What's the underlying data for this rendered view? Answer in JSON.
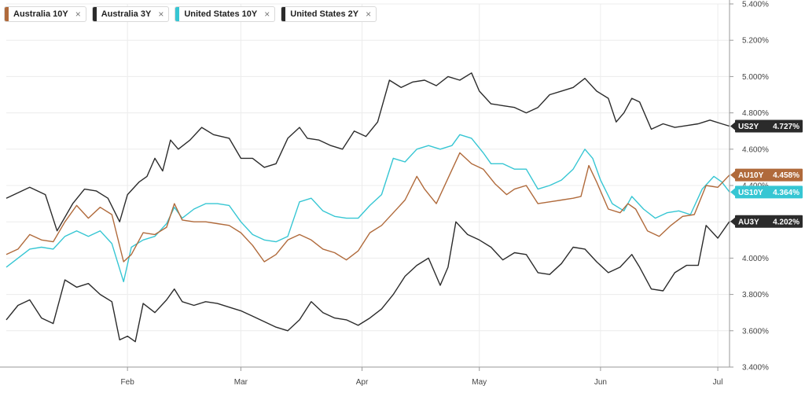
{
  "legend": [
    {
      "name": "Australia 10Y",
      "color": "#b06a3b"
    },
    {
      "name": "Australia 3Y",
      "color": "#2b2b2b"
    },
    {
      "name": "United States 10Y",
      "color": "#36c6d3"
    },
    {
      "name": "United States 2Y",
      "color": "#2b2b2b"
    }
  ],
  "chart_data": {
    "type": "line",
    "title": "",
    "xlabel": "",
    "ylabel": "",
    "ylim": [
      3.4,
      5.4
    ],
    "y_ticks": [
      "3.400%",
      "3.600%",
      "3.800%",
      "4.000%",
      "4.200%",
      "4.400%",
      "4.600%",
      "4.800%",
      "5.000%",
      "5.200%",
      "5.400%"
    ],
    "y_tick_values": [
      3.4,
      3.6,
      3.8,
      4.0,
      4.2,
      4.4,
      4.6,
      4.8,
      5.0,
      5.2,
      5.4
    ],
    "x_range": [
      0,
      185
    ],
    "x_ticks": [
      {
        "label": "Feb",
        "t": 31
      },
      {
        "label": "Mar",
        "t": 60
      },
      {
        "label": "Apr",
        "t": 91
      },
      {
        "label": "May",
        "t": 121
      },
      {
        "label": "Jun",
        "t": 152
      },
      {
        "label": "Jul",
        "t": 182
      }
    ],
    "grid": true,
    "legend_position": "top-left",
    "series": [
      {
        "name": "United States 2Y",
        "badge": "US2Y",
        "value_label": "4.727%",
        "color": "#2b2b2b",
        "points": [
          [
            0,
            4.33
          ],
          [
            6,
            4.39
          ],
          [
            10,
            4.35
          ],
          [
            13,
            4.15
          ],
          [
            17,
            4.3
          ],
          [
            20,
            4.38
          ],
          [
            23,
            4.37
          ],
          [
            26,
            4.33
          ],
          [
            29,
            4.2
          ],
          [
            31,
            4.35
          ],
          [
            34,
            4.42
          ],
          [
            36,
            4.45
          ],
          [
            38,
            4.55
          ],
          [
            40,
            4.48
          ],
          [
            42,
            4.65
          ],
          [
            44,
            4.6
          ],
          [
            47,
            4.65
          ],
          [
            50,
            4.72
          ],
          [
            53,
            4.68
          ],
          [
            57,
            4.66
          ],
          [
            60,
            4.55
          ],
          [
            63,
            4.55
          ],
          [
            66,
            4.5
          ],
          [
            69,
            4.52
          ],
          [
            72,
            4.66
          ],
          [
            75,
            4.72
          ],
          [
            77,
            4.66
          ],
          [
            80,
            4.65
          ],
          [
            83,
            4.62
          ],
          [
            86,
            4.6
          ],
          [
            89,
            4.7
          ],
          [
            92,
            4.67
          ],
          [
            95,
            4.75
          ],
          [
            98,
            4.98
          ],
          [
            101,
            4.94
          ],
          [
            104,
            4.97
          ],
          [
            107,
            4.98
          ],
          [
            110,
            4.95
          ],
          [
            113,
            5.0
          ],
          [
            116,
            4.98
          ],
          [
            119,
            5.02
          ],
          [
            121,
            4.92
          ],
          [
            124,
            4.85
          ],
          [
            127,
            4.84
          ],
          [
            130,
            4.83
          ],
          [
            133,
            4.8
          ],
          [
            136,
            4.83
          ],
          [
            139,
            4.9
          ],
          [
            142,
            4.92
          ],
          [
            145,
            4.94
          ],
          [
            148,
            4.99
          ],
          [
            151,
            4.92
          ],
          [
            154,
            4.88
          ],
          [
            156,
            4.75
          ],
          [
            158,
            4.8
          ],
          [
            160,
            4.88
          ],
          [
            162,
            4.86
          ],
          [
            165,
            4.71
          ],
          [
            168,
            4.74
          ],
          [
            171,
            4.72
          ],
          [
            174,
            4.73
          ],
          [
            177,
            4.74
          ],
          [
            180,
            4.76
          ],
          [
            183,
            4.74
          ],
          [
            185,
            4.727
          ]
        ]
      },
      {
        "name": "United States 10Y",
        "badge": "US10Y",
        "value_label": "4.364%",
        "color": "#36c6d3",
        "points": [
          [
            0,
            3.95
          ],
          [
            3,
            4.0
          ],
          [
            6,
            4.05
          ],
          [
            9,
            4.06
          ],
          [
            12,
            4.05
          ],
          [
            15,
            4.12
          ],
          [
            18,
            4.15
          ],
          [
            21,
            4.12
          ],
          [
            24,
            4.15
          ],
          [
            27,
            4.08
          ],
          [
            30,
            3.87
          ],
          [
            32,
            4.06
          ],
          [
            35,
            4.1
          ],
          [
            38,
            4.12
          ],
          [
            41,
            4.19
          ],
          [
            43,
            4.28
          ],
          [
            45,
            4.22
          ],
          [
            48,
            4.27
          ],
          [
            51,
            4.3
          ],
          [
            54,
            4.3
          ],
          [
            57,
            4.29
          ],
          [
            60,
            4.2
          ],
          [
            63,
            4.13
          ],
          [
            66,
            4.1
          ],
          [
            69,
            4.09
          ],
          [
            72,
            4.12
          ],
          [
            75,
            4.31
          ],
          [
            78,
            4.33
          ],
          [
            81,
            4.26
          ],
          [
            84,
            4.23
          ],
          [
            87,
            4.22
          ],
          [
            90,
            4.22
          ],
          [
            93,
            4.29
          ],
          [
            96,
            4.35
          ],
          [
            99,
            4.55
          ],
          [
            102,
            4.53
          ],
          [
            105,
            4.6
          ],
          [
            108,
            4.62
          ],
          [
            111,
            4.6
          ],
          [
            114,
            4.62
          ],
          [
            116,
            4.68
          ],
          [
            119,
            4.66
          ],
          [
            122,
            4.58
          ],
          [
            124,
            4.52
          ],
          [
            127,
            4.52
          ],
          [
            130,
            4.49
          ],
          [
            133,
            4.49
          ],
          [
            136,
            4.38
          ],
          [
            139,
            4.4
          ],
          [
            142,
            4.43
          ],
          [
            145,
            4.49
          ],
          [
            148,
            4.6
          ],
          [
            150,
            4.55
          ],
          [
            152,
            4.43
          ],
          [
            155,
            4.3
          ],
          [
            158,
            4.26
          ],
          [
            160,
            4.34
          ],
          [
            163,
            4.27
          ],
          [
            166,
            4.22
          ],
          [
            169,
            4.25
          ],
          [
            172,
            4.26
          ],
          [
            175,
            4.24
          ],
          [
            178,
            4.38
          ],
          [
            181,
            4.45
          ],
          [
            183,
            4.42
          ],
          [
            185,
            4.364
          ]
        ]
      },
      {
        "name": "Australia 10Y",
        "badge": "AU10Y",
        "value_label": "4.458%",
        "color": "#b06a3b",
        "points": [
          [
            0,
            4.02
          ],
          [
            3,
            4.05
          ],
          [
            6,
            4.13
          ],
          [
            9,
            4.1
          ],
          [
            12,
            4.09
          ],
          [
            15,
            4.2
          ],
          [
            18,
            4.29
          ],
          [
            21,
            4.22
          ],
          [
            24,
            4.28
          ],
          [
            27,
            4.24
          ],
          [
            30,
            3.98
          ],
          [
            32,
            4.02
          ],
          [
            35,
            4.14
          ],
          [
            38,
            4.13
          ],
          [
            41,
            4.17
          ],
          [
            43,
            4.3
          ],
          [
            45,
            4.21
          ],
          [
            48,
            4.2
          ],
          [
            51,
            4.2
          ],
          [
            54,
            4.19
          ],
          [
            57,
            4.18
          ],
          [
            60,
            4.14
          ],
          [
            63,
            4.07
          ],
          [
            66,
            3.98
          ],
          [
            69,
            4.02
          ],
          [
            72,
            4.1
          ],
          [
            75,
            4.13
          ],
          [
            78,
            4.1
          ],
          [
            81,
            4.05
          ],
          [
            84,
            4.03
          ],
          [
            87,
            3.99
          ],
          [
            90,
            4.04
          ],
          [
            93,
            4.14
          ],
          [
            96,
            4.18
          ],
          [
            99,
            4.25
          ],
          [
            102,
            4.32
          ],
          [
            105,
            4.45
          ],
          [
            107,
            4.38
          ],
          [
            110,
            4.3
          ],
          [
            113,
            4.44
          ],
          [
            116,
            4.58
          ],
          [
            119,
            4.52
          ],
          [
            122,
            4.49
          ],
          [
            125,
            4.41
          ],
          [
            128,
            4.35
          ],
          [
            130,
            4.38
          ],
          [
            133,
            4.4
          ],
          [
            136,
            4.3
          ],
          [
            139,
            4.31
          ],
          [
            142,
            4.32
          ],
          [
            145,
            4.33
          ],
          [
            147,
            4.34
          ],
          [
            149,
            4.51
          ],
          [
            151,
            4.42
          ],
          [
            154,
            4.27
          ],
          [
            157,
            4.25
          ],
          [
            159,
            4.3
          ],
          [
            161,
            4.27
          ],
          [
            164,
            4.15
          ],
          [
            167,
            4.12
          ],
          [
            170,
            4.18
          ],
          [
            173,
            4.23
          ],
          [
            176,
            4.24
          ],
          [
            179,
            4.4
          ],
          [
            182,
            4.39
          ],
          [
            185,
            4.458
          ]
        ]
      },
      {
        "name": "Australia 3Y",
        "badge": "AU3Y",
        "value_label": "4.202%",
        "color": "#2b2b2b",
        "points": [
          [
            0,
            3.66
          ],
          [
            3,
            3.74
          ],
          [
            6,
            3.77
          ],
          [
            9,
            3.67
          ],
          [
            12,
            3.64
          ],
          [
            15,
            3.88
          ],
          [
            18,
            3.84
          ],
          [
            21,
            3.86
          ],
          [
            24,
            3.8
          ],
          [
            27,
            3.76
          ],
          [
            29,
            3.55
          ],
          [
            31,
            3.57
          ],
          [
            33,
            3.54
          ],
          [
            35,
            3.75
          ],
          [
            38,
            3.7
          ],
          [
            41,
            3.77
          ],
          [
            43,
            3.83
          ],
          [
            45,
            3.76
          ],
          [
            48,
            3.74
          ],
          [
            51,
            3.76
          ],
          [
            54,
            3.75
          ],
          [
            57,
            3.73
          ],
          [
            60,
            3.71
          ],
          [
            63,
            3.68
          ],
          [
            66,
            3.65
          ],
          [
            69,
            3.62
          ],
          [
            72,
            3.6
          ],
          [
            75,
            3.66
          ],
          [
            78,
            3.76
          ],
          [
            81,
            3.7
          ],
          [
            84,
            3.67
          ],
          [
            87,
            3.66
          ],
          [
            90,
            3.63
          ],
          [
            93,
            3.67
          ],
          [
            96,
            3.72
          ],
          [
            99,
            3.8
          ],
          [
            102,
            3.9
          ],
          [
            105,
            3.96
          ],
          [
            108,
            4.0
          ],
          [
            111,
            3.85
          ],
          [
            113,
            3.95
          ],
          [
            115,
            4.2
          ],
          [
            118,
            4.13
          ],
          [
            121,
            4.1
          ],
          [
            124,
            4.06
          ],
          [
            127,
            3.99
          ],
          [
            130,
            4.03
          ],
          [
            133,
            4.02
          ],
          [
            136,
            3.92
          ],
          [
            139,
            3.91
          ],
          [
            142,
            3.97
          ],
          [
            145,
            4.06
          ],
          [
            148,
            4.05
          ],
          [
            151,
            3.98
          ],
          [
            154,
            3.92
          ],
          [
            157,
            3.95
          ],
          [
            160,
            4.02
          ],
          [
            162,
            3.95
          ],
          [
            165,
            3.83
          ],
          [
            168,
            3.82
          ],
          [
            171,
            3.92
          ],
          [
            174,
            3.96
          ],
          [
            177,
            3.96
          ],
          [
            179,
            4.18
          ],
          [
            182,
            4.11
          ],
          [
            185,
            4.202
          ]
        ]
      }
    ]
  }
}
